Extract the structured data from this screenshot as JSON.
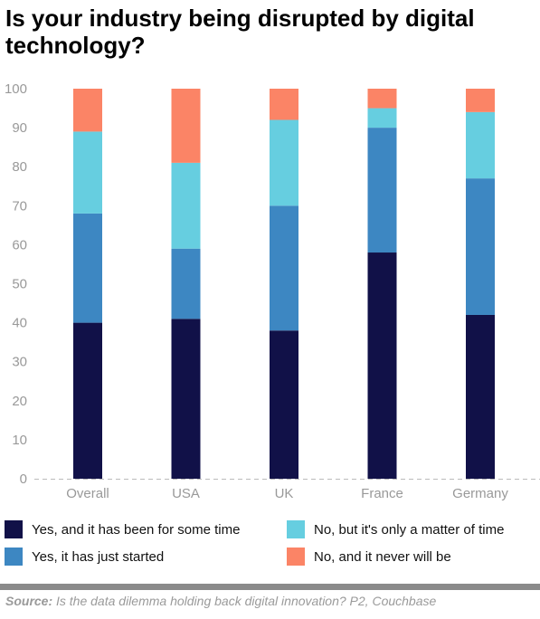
{
  "chart_data": {
    "type": "bar",
    "stacked": true,
    "title": "Is your industry being disrupted by digital technology?",
    "categories": [
      "Overall",
      "USA",
      "UK",
      "France",
      "Germany"
    ],
    "series": [
      {
        "name": "Yes, and it has been for some time",
        "color": "#111148",
        "values": [
          40,
          41,
          38,
          58,
          42
        ]
      },
      {
        "name": "Yes, it has just started",
        "color": "#3d87c2",
        "values": [
          28,
          18,
          32,
          32,
          35
        ]
      },
      {
        "name": "No, but it's only a matter of time",
        "color": "#66cee0",
        "values": [
          21,
          22,
          22,
          5,
          17
        ]
      },
      {
        "name": "No, and it never will be",
        "color": "#fb8466",
        "values": [
          11,
          19,
          8,
          5,
          6
        ]
      }
    ],
    "ylim": [
      0,
      100
    ],
    "yticks": [
      0,
      10,
      20,
      30,
      40,
      50,
      60,
      70,
      80,
      90,
      100
    ],
    "grid": false,
    "legend_position": "bottom"
  },
  "source": {
    "label": "Source:",
    "text": " Is the data dilemma holding back digital innovation? P2, Couchbase"
  }
}
